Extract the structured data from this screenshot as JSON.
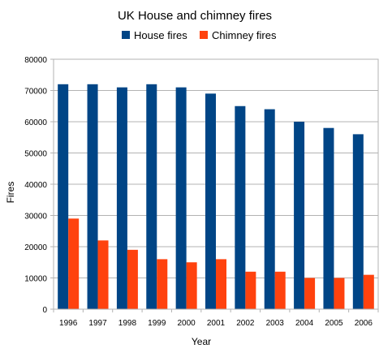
{
  "chart_data": {
    "type": "bar",
    "title": "UK House and chimney fires",
    "xlabel": "Year",
    "ylabel": "Fires",
    "categories": [
      "1996",
      "1997",
      "1998",
      "1999",
      "2000",
      "2001",
      "2002",
      "2003",
      "2004",
      "2005",
      "2006"
    ],
    "series": [
      {
        "name": "House fires",
        "color": "#004586",
        "values": [
          72000,
          72000,
          71000,
          72000,
          71000,
          69000,
          65000,
          64000,
          60000,
          58000,
          56000
        ]
      },
      {
        "name": "Chimney fires",
        "color": "#ff420e",
        "values": [
          29000,
          22000,
          19000,
          16000,
          15000,
          16000,
          12000,
          12000,
          10000,
          10000,
          11000
        ]
      }
    ],
    "ylim": [
      0,
      80000
    ],
    "yticks": [
      "0",
      "10000",
      "20000",
      "30000",
      "40000",
      "50000",
      "60000",
      "70000",
      "80000"
    ],
    "grid": true,
    "legend": "top-center"
  }
}
